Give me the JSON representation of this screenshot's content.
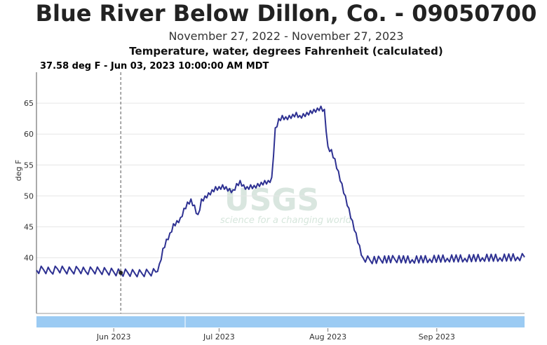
{
  "chart_data": {
    "type": "line",
    "title": "Blue River Below Dillon, Co. - 09050700",
    "subtitle": "November 27, 2022 - November 27, 2023",
    "parameter": "Temperature, water, degrees Fahrenheit (calculated)",
    "hover_text": "37.58 deg F - Jun 03, 2023 10:00:00 AM MDT",
    "hover_point": {
      "x": "2023-06-03",
      "y": 37.58
    },
    "ylabel": "deg F",
    "xlabel": "",
    "ylim": [
      31,
      70
    ],
    "xlim": [
      "2023-05-10",
      "2023-09-26"
    ],
    "y_ticks": [
      40,
      45,
      50,
      55,
      60,
      65
    ],
    "x_ticks": [
      {
        "x": "2023-06-01",
        "label": "Jun 2023"
      },
      {
        "x": "2023-07-01",
        "label": "Jul 2023"
      },
      {
        "x": "2023-08-01",
        "label": "Aug 2023"
      },
      {
        "x": "2023-09-01",
        "label": "Sep 2023"
      }
    ],
    "grid": "horizontal",
    "line_color": "#2e3192",
    "series": [
      {
        "x": [
          "2023-05-10",
          "2023-05-12",
          "2023-05-14",
          "2023-05-16",
          "2023-05-18",
          "2023-05-20",
          "2023-05-22",
          "2023-05-24",
          "2023-05-26",
          "2023-05-28",
          "2023-05-30",
          "2023-06-01",
          "2023-06-03",
          "2023-06-05",
          "2023-06-07",
          "2023-06-09",
          "2023-06-11",
          "2023-06-13",
          "2023-06-14",
          "2023-06-15",
          "2023-06-16",
          "2023-06-17",
          "2023-06-18",
          "2023-06-19",
          "2023-06-20",
          "2023-06-21",
          "2023-06-22",
          "2023-06-23",
          "2023-06-24",
          "2023-06-25",
          "2023-06-26",
          "2023-06-27",
          "2023-06-28",
          "2023-06-29",
          "2023-06-30",
          "2023-07-01",
          "2023-07-02",
          "2023-07-03",
          "2023-07-04",
          "2023-07-05",
          "2023-07-06",
          "2023-07-07",
          "2023-07-08",
          "2023-07-09",
          "2023-07-10",
          "2023-07-11",
          "2023-07-12",
          "2023-07-13",
          "2023-07-14",
          "2023-07-15",
          "2023-07-16",
          "2023-07-17",
          "2023-07-18",
          "2023-07-19",
          "2023-07-20",
          "2023-07-21",
          "2023-07-22",
          "2023-07-23",
          "2023-07-24",
          "2023-07-25",
          "2023-07-26",
          "2023-07-27",
          "2023-07-28",
          "2023-07-29",
          "2023-07-30",
          "2023-07-31",
          "2023-08-01",
          "2023-08-02",
          "2023-08-03",
          "2023-08-04",
          "2023-08-05",
          "2023-08-06",
          "2023-08-07",
          "2023-08-08",
          "2023-08-09",
          "2023-08-10",
          "2023-08-11",
          "2023-08-13",
          "2023-08-16",
          "2023-08-20",
          "2023-08-25",
          "2023-08-30",
          "2023-09-04",
          "2023-09-09",
          "2023-09-14",
          "2023-09-19",
          "2023-09-24",
          "2023-09-26"
        ],
        "y": [
          38.0,
          38.1,
          37.8,
          38.2,
          38.0,
          37.9,
          38.1,
          37.8,
          38.0,
          37.9,
          37.8,
          37.7,
          37.58,
          37.6,
          37.5,
          37.5,
          37.6,
          37.7,
          39.0,
          41.5,
          43.0,
          44.0,
          45.5,
          46.0,
          46.5,
          48.0,
          49.0,
          49.5,
          48.5,
          47.0,
          49.5,
          50.0,
          50.5,
          51.0,
          51.5,
          51.5,
          51.8,
          51.5,
          51.2,
          51.0,
          52.0,
          52.5,
          51.8,
          51.5,
          51.8,
          51.7,
          52.0,
          52.2,
          52.5,
          52.5,
          53.0,
          61.0,
          62.5,
          63.0,
          62.8,
          63.0,
          63.2,
          63.5,
          63.0,
          63.3,
          63.5,
          63.8,
          64.0,
          64.2,
          64.5,
          64.0,
          58.0,
          57.5,
          56.0,
          54.0,
          52.0,
          50.0,
          48.0,
          46.0,
          44.0,
          42.0,
          40.0,
          39.6,
          39.7,
          39.8,
          39.7,
          39.8,
          39.9,
          39.9,
          40.0,
          40.0,
          40.1,
          40.1
        ]
      }
    ]
  },
  "watermark": {
    "logo_text": "USGS",
    "tagline": "science for a changing world"
  },
  "colors": {
    "line": "#2e3192",
    "hover_text": "#2e3192",
    "brush_bar": "#9bcbf3",
    "grid": "#e6e6e6"
  }
}
